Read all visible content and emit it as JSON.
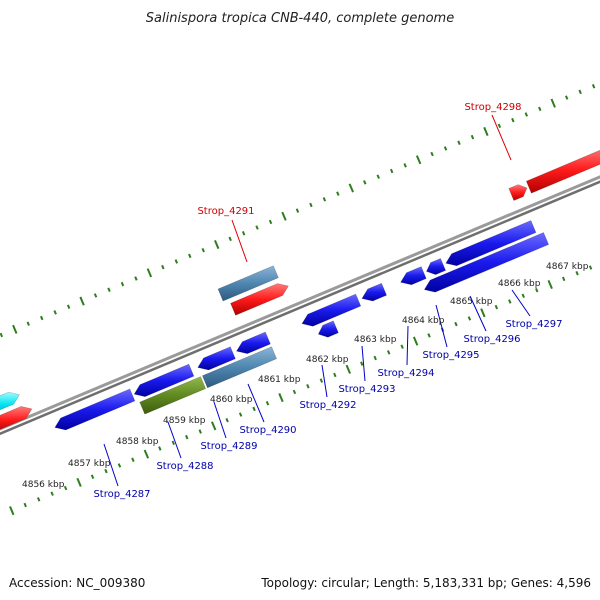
{
  "title": "Salinispora tropica CNB-440, complete genome",
  "footer": {
    "accession": "Accession: NC_009380",
    "topology": "Topology: circular; Length: 5,183,331 bp; Genes: 4,596"
  },
  "colors": {
    "backbone": "#8c8c8c",
    "ticks": "#2e7d1e",
    "gene_label_forward": "#cc0000",
    "gene_label_reverse": "#0000aa",
    "leader_forward": "#dd0000",
    "leader_reverse": "#0000cc",
    "gene_red": "#ff1a1a",
    "gene_blue": "#1010e0",
    "gene_steel": "#4f86b0",
    "gene_olive": "#5f8a20",
    "gene_cyan": "#00e5f0"
  },
  "scale_labels": [
    "4856 kbp",
    "4857 kbp",
    "4858 kbp",
    "4859 kbp",
    "4860 kbp",
    "4861 kbp",
    "4862 kbp",
    "4863 kbp",
    "4864 kbp",
    "4865 kbp",
    "4866 kbp",
    "4867 kbp"
  ],
  "gene_labels_forward": [
    "Strop_4291",
    "Strop_4298"
  ],
  "gene_labels_reverse": [
    "Strop_4287",
    "Strop_4288",
    "Strop_4289",
    "Strop_4290",
    "Strop_4292",
    "Strop_4293",
    "Strop_4294",
    "Strop_4295",
    "Strop_4296",
    "Strop_4297"
  ]
}
